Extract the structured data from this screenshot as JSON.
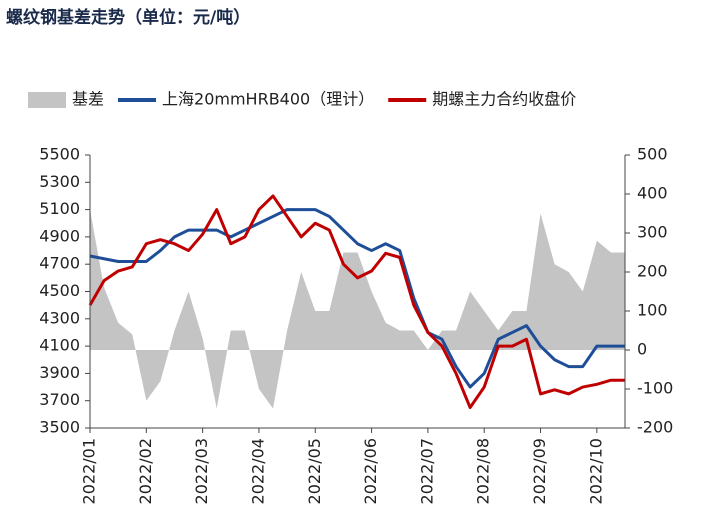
{
  "chart_data": {
    "type": "line",
    "title": "螺纹钢基差走势（单位：元/吨）",
    "categories": [
      "2022/01",
      null,
      null,
      null,
      "2022/02",
      null,
      null,
      null,
      "2022/03",
      null,
      null,
      null,
      "2022/04",
      null,
      null,
      null,
      "2022/05",
      null,
      null,
      null,
      "2022/06",
      null,
      null,
      null,
      "2022/07",
      null,
      null,
      null,
      "2022/08",
      null,
      null,
      null,
      "2022/09",
      null,
      null,
      null,
      "2022/10",
      null,
      null
    ],
    "series": [
      {
        "name": "基差",
        "type": "area",
        "axis": "y2",
        "color": "#c4c4c4",
        "values": [
          360,
          160,
          70,
          40,
          -130,
          -80,
          50,
          150,
          30,
          -150,
          50,
          50,
          -100,
          -150,
          50,
          200,
          100,
          100,
          250,
          250,
          150,
          70,
          50,
          50,
          0,
          50,
          50,
          150,
          100,
          50,
          100,
          100,
          350,
          220,
          200,
          150,
          280,
          250,
          250
        ]
      },
      {
        "name": "上海20mmHRB400（理计）",
        "type": "line",
        "color": "#1f4e99",
        "values": [
          4760,
          4740,
          4720,
          4720,
          4720,
          4800,
          4900,
          4950,
          4950,
          4950,
          4900,
          4950,
          5000,
          5050,
          5100,
          5100,
          5100,
          5050,
          4950,
          4850,
          4800,
          4850,
          4800,
          4450,
          4200,
          4150,
          3950,
          3800,
          3900,
          4150,
          4200,
          4250,
          4100,
          4000,
          3950,
          3950,
          4100,
          4100,
          4100
        ]
      },
      {
        "name": "期螺主力合约收盘价",
        "type": "line",
        "color": "#c00000",
        "values": [
          4400,
          4580,
          4650,
          4680,
          4850,
          4880,
          4850,
          4800,
          4920,
          5100,
          4850,
          4900,
          5100,
          5200,
          5050,
          4900,
          5000,
          4950,
          4700,
          4600,
          4650,
          4780,
          4750,
          4400,
          4200,
          4100,
          3900,
          3650,
          3800,
          4100,
          4100,
          4150,
          3750,
          3780,
          3750,
          3800,
          3820,
          3850,
          3850
        ]
      }
    ],
    "ylim": [
      3500,
      5500
    ],
    "yticks": [
      3500,
      3700,
      3900,
      4100,
      4300,
      4500,
      4700,
      4900,
      5100,
      5300,
      5500
    ],
    "y2lim": [
      -200,
      500
    ],
    "y2ticks": [
      -200,
      -100,
      0,
      100,
      200,
      300,
      400,
      500
    ],
    "grid": false
  }
}
